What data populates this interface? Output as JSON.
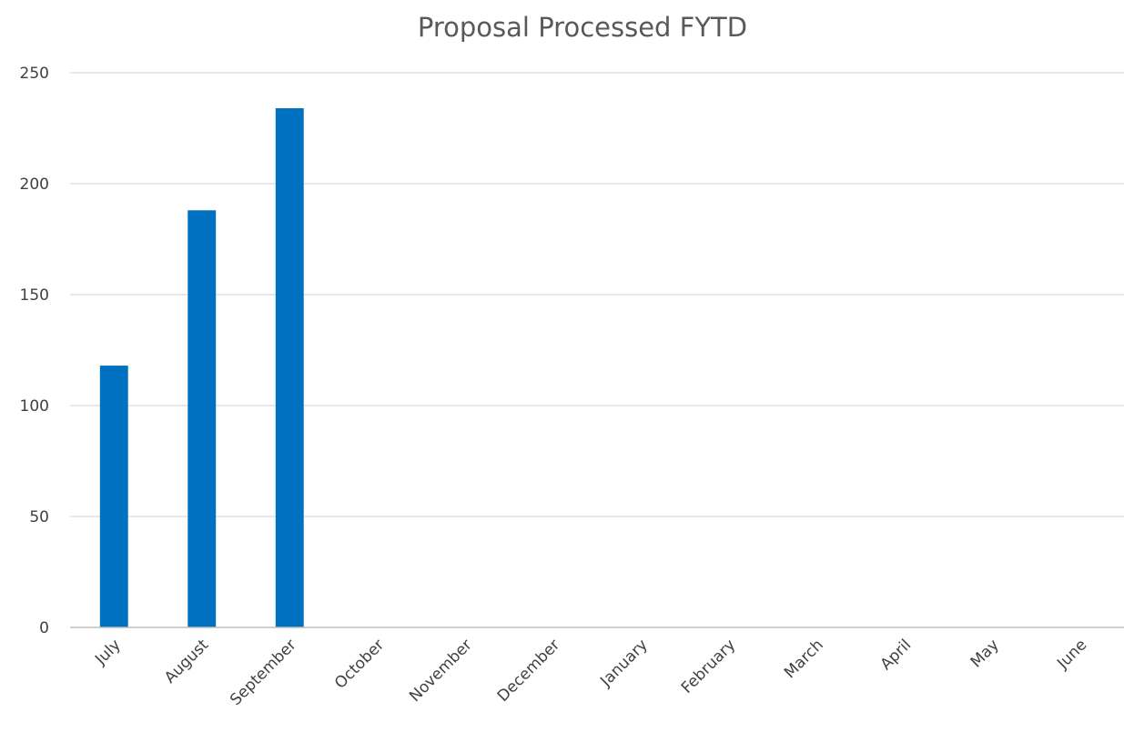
{
  "chart_data": {
    "type": "bar",
    "title": "Proposal Processed FYTD",
    "xlabel": "",
    "ylabel": "",
    "categories": [
      "July",
      "August",
      "September",
      "October",
      "November",
      "December",
      "January",
      "February",
      "March",
      "April",
      "May",
      "June"
    ],
    "values": [
      118,
      188,
      234,
      null,
      null,
      null,
      null,
      null,
      null,
      null,
      null,
      null
    ],
    "ylim": [
      0,
      250
    ],
    "yticks": [
      0,
      50,
      100,
      150,
      200,
      250
    ],
    "grid": true,
    "legend": "none",
    "bar_color": "#0070C0",
    "grid_color": "#d9d9d9"
  }
}
